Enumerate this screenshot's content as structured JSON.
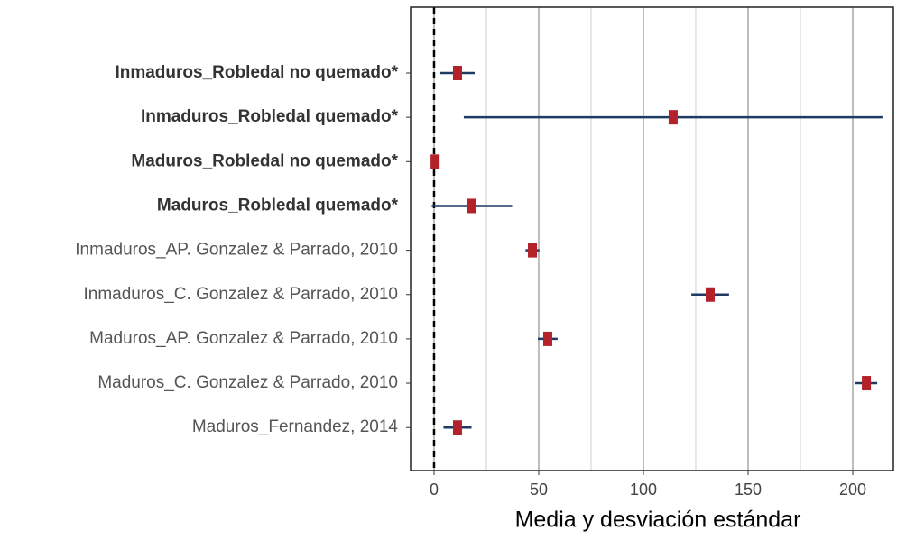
{
  "chart_data": {
    "type": "errorbar",
    "xlabel": "Media y desviación estándar",
    "categories": [
      "Inmaduros_Robledal no quemado*",
      "Inmaduros_Robledal quemado*",
      "Maduros_Robledal no quemado*",
      "Maduros_Robledal quemado*",
      "Inmaduros_AP. Gonzalez & Parrado, 2010",
      "Inmaduros_C. Gonzalez & Parrado, 2010",
      "Maduros_AP. Gonzalez & Parrado,  2010",
      "Maduros_C. Gonzalez & Parrado, 2010",
      "Maduros_Fernandez, 2014"
    ],
    "bold": [
      true,
      true,
      true,
      true,
      false,
      false,
      false,
      false,
      false
    ],
    "values": [
      11.2,
      114.2,
      0.5,
      18.1,
      47,
      131.9,
      54.3,
      206.5,
      11.2
    ],
    "errors": [
      8.2,
      100,
      0.5,
      19.2,
      3.3,
      9,
      4.7,
      5.2,
      6.7
    ],
    "color": "#b22228",
    "bar_color": "#1f3a63",
    "xlim": [
      -11.2,
      219.4
    ],
    "xticks": [
      0,
      50,
      100,
      150,
      200
    ],
    "minor_xticks": [
      25,
      75,
      125,
      175
    ],
    "ref_line": 0,
    "grid": true
  }
}
